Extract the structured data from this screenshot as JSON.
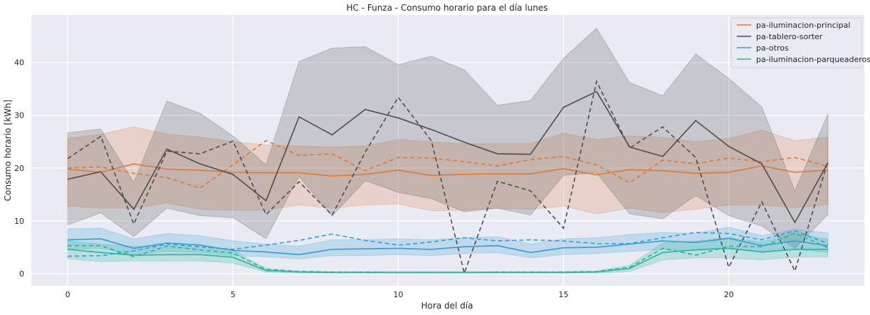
{
  "chart_data": {
    "type": "line",
    "title": "HC - Funza - Consumo horario para el día lunes",
    "xlabel": "Hora del día",
    "ylabel": "Consumo horario [kWh]",
    "xlim": [
      -1.1,
      24.1
    ],
    "ylim": [
      -2.3,
      49.0
    ],
    "xticks": [
      0,
      5,
      10,
      15,
      20
    ],
    "yticks": [
      0,
      10,
      20,
      30,
      40
    ],
    "grid": true,
    "legend_position": "top-right",
    "x": [
      0,
      1,
      2,
      3,
      4,
      5,
      6,
      7,
      8,
      9,
      10,
      11,
      12,
      13,
      14,
      15,
      16,
      17,
      18,
      19,
      20,
      21,
      22,
      23
    ],
    "series": [
      {
        "name": "pa-iluminacion-principal",
        "color": "#dd7a3a",
        "values": [
          19.8,
          19.2,
          20.8,
          19.8,
          19.6,
          19.2,
          19.1,
          19.1,
          18.5,
          18.8,
          19.6,
          18.6,
          18.8,
          18.9,
          18.9,
          19.9,
          18.7,
          19.7,
          19.5,
          19.0,
          19.2,
          20.4,
          19.2,
          19.6
        ],
        "dashed": [
          20.0,
          20.2,
          19.0,
          18.2,
          16.2,
          20.6,
          25.2,
          22.4,
          22.7,
          19.5,
          22.0,
          21.9,
          21.2,
          20.4,
          21.6,
          22.2,
          20.6,
          17.2,
          21.5,
          20.8,
          21.9,
          21.2,
          22.0,
          20.3
        ],
        "lower": [
          12.8,
          12.4,
          12.4,
          13.4,
          12.2,
          12.0,
          12.0,
          13.0,
          12.4,
          13.0,
          13.2,
          11.9,
          12.0,
          12.4,
          12.2,
          12.8,
          11.3,
          12.4,
          11.6,
          12.2,
          13.0,
          13.0,
          12.5,
          13.1
        ],
        "upper": [
          25.6,
          26.4,
          27.8,
          26.4,
          25.9,
          25.0,
          24.4,
          24.2,
          24.0,
          24.2,
          25.4,
          25.0,
          24.6,
          24.6,
          24.6,
          26.6,
          25.4,
          26.1,
          25.8,
          25.0,
          25.6,
          27.2,
          25.2,
          25.9
        ]
      },
      {
        "name": "pa-tablero-sorter",
        "color": "#4d4d4d",
        "values": [
          17.9,
          19.3,
          12.2,
          23.6,
          20.8,
          18.8,
          13.8,
          29.7,
          26.3,
          31.1,
          29.5,
          27.3,
          24.9,
          22.7,
          22.6,
          31.5,
          34.5,
          24.0,
          22.2,
          29.0,
          24.1,
          20.8,
          9.7,
          21.0
        ],
        "dashed": [
          21.8,
          26.0,
          9.4,
          23.2,
          22.7,
          25.1,
          11.2,
          17.4,
          11.1,
          23.0,
          33.4,
          25.2,
          0.1,
          17.5,
          15.7,
          8.6,
          36.4,
          23.8,
          27.8,
          22.0,
          1.2,
          13.6,
          0.5,
          21.3
        ],
        "lower": [
          9.2,
          11.5,
          7.0,
          12.4,
          11.0,
          10.6,
          6.6,
          18.4,
          10.9,
          17.6,
          15.4,
          14.2,
          11.7,
          12.4,
          11.1,
          18.6,
          19.1,
          11.3,
          10.4,
          14.8,
          11.0,
          9.0,
          4.8,
          11.2
        ],
        "upper": [
          26.7,
          27.4,
          17.3,
          32.7,
          30.4,
          26.1,
          20.6,
          40.2,
          42.7,
          43.0,
          39.6,
          41.2,
          38.6,
          31.9,
          32.8,
          40.8,
          46.5,
          36.2,
          33.7,
          41.6,
          37.0,
          31.6,
          15.7,
          30.3
        ]
      },
      {
        "name": "pa-otros",
        "color": "#2e9fd8",
        "values": [
          6.4,
          6.6,
          4.8,
          5.8,
          5.4,
          4.4,
          4.1,
          3.6,
          4.6,
          4.7,
          4.8,
          4.6,
          5.1,
          5.3,
          4.0,
          4.9,
          5.0,
          5.6,
          6.2,
          5.9,
          6.7,
          5.3,
          6.2,
          5.3
        ],
        "dashed": [
          3.3,
          3.4,
          4.3,
          5.6,
          5.1,
          4.6,
          5.4,
          6.3,
          7.5,
          6.3,
          5.4,
          6.0,
          6.8,
          6.2,
          6.4,
          6.2,
          5.7,
          5.7,
          6.8,
          7.8,
          7.6,
          6.4,
          8.1,
          5.7
        ],
        "lower": [
          4.6,
          4.8,
          3.6,
          4.2,
          4.0,
          3.4,
          3.2,
          2.8,
          3.4,
          3.4,
          3.6,
          3.4,
          3.8,
          4.0,
          3.0,
          3.6,
          3.8,
          4.2,
          4.6,
          4.4,
          4.8,
          4.0,
          4.6,
          4.0
        ],
        "upper": [
          8.5,
          8.6,
          6.6,
          7.6,
          7.2,
          6.2,
          5.6,
          5.2,
          6.4,
          6.4,
          6.6,
          6.4,
          6.8,
          7.0,
          5.6,
          6.6,
          6.8,
          7.4,
          7.8,
          7.6,
          8.8,
          7.2,
          8.4,
          7.7
        ]
      },
      {
        "name": "pa-iluminacion-parqueaderos",
        "color": "#22b899",
        "values": [
          4.6,
          4.0,
          3.5,
          3.6,
          3.6,
          3.1,
          0.6,
          0.3,
          0.2,
          0.2,
          0.2,
          0.2,
          0.2,
          0.2,
          0.2,
          0.2,
          0.3,
          1.0,
          4.0,
          4.5,
          4.8,
          4.1,
          4.6,
          4.6
        ],
        "dashed": [
          5.3,
          5.3,
          3.2,
          5.2,
          4.5,
          3.9,
          0.8,
          0.4,
          0.3,
          0.3,
          0.2,
          0.2,
          0.2,
          0.3,
          0.3,
          0.3,
          0.4,
          1.2,
          4.8,
          3.5,
          5.2,
          5.1,
          7.7,
          4.9
        ],
        "lower": [
          2.8,
          2.3,
          2.4,
          2.4,
          2.4,
          2.0,
          0.3,
          0.1,
          0.1,
          0.1,
          0.1,
          0.1,
          0.1,
          0.1,
          0.1,
          0.1,
          0.1,
          0.4,
          2.6,
          3.0,
          3.0,
          2.6,
          3.1,
          3.1
        ],
        "upper": [
          6.2,
          5.6,
          5.2,
          5.4,
          5.0,
          4.5,
          1.0,
          0.5,
          0.4,
          0.4,
          0.4,
          0.4,
          0.4,
          0.4,
          0.4,
          0.4,
          0.5,
          1.6,
          5.8,
          6.2,
          6.8,
          6.0,
          7.6,
          6.5
        ]
      }
    ]
  }
}
